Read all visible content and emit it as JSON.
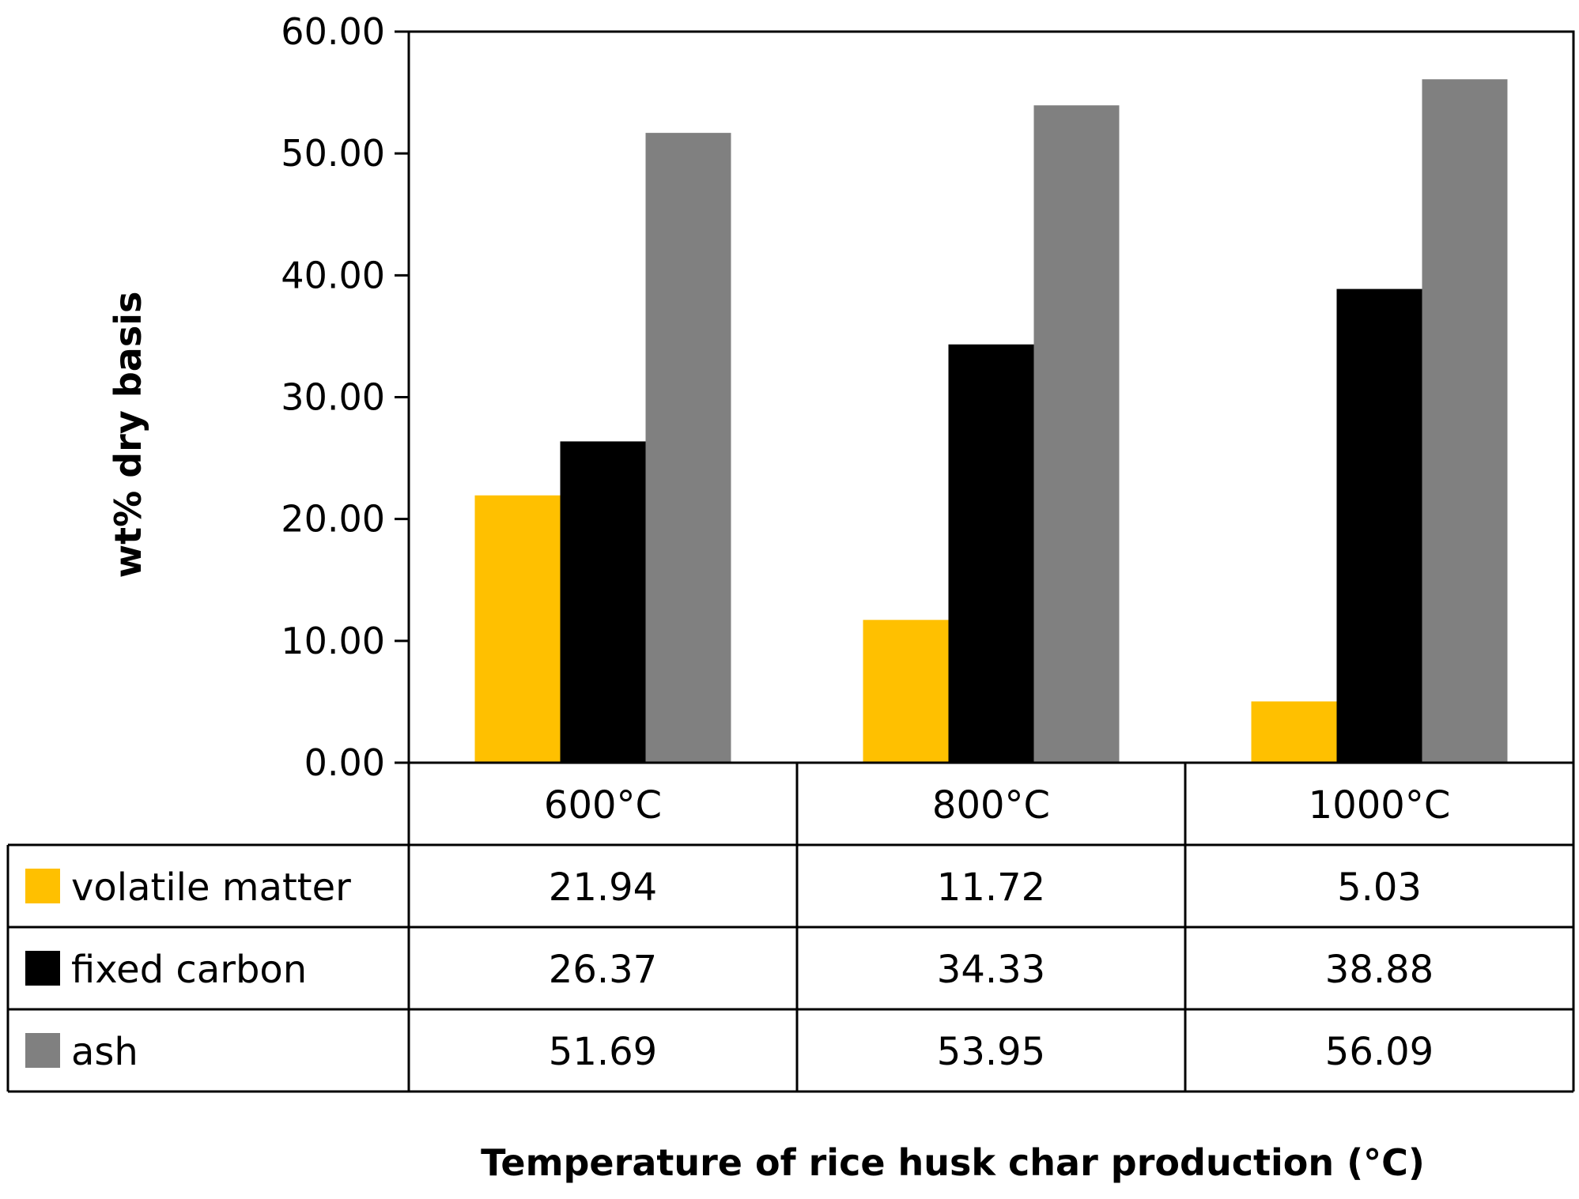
{
  "chart_data": {
    "type": "bar",
    "title": "",
    "xlabel": "Temperature of rice husk char production (°C)",
    "ylabel": "wt% dry basis",
    "ylim": [
      0,
      60
    ],
    "yticks": [
      "0.00",
      "10.00",
      "20.00",
      "30.00",
      "40.00",
      "50.00",
      "60.00"
    ],
    "categories": [
      "600°C",
      "800°C",
      "1000°C"
    ],
    "grid": false,
    "legend": "data table below plot",
    "series": [
      {
        "name": "volatile matter",
        "color": "#FFC000",
        "values": [
          21.94,
          11.72,
          5.03
        ],
        "labels": [
          "21.94",
          "11.72",
          "5.03"
        ]
      },
      {
        "name": "fixed carbon",
        "color": "#000000",
        "values": [
          26.37,
          34.33,
          38.88
        ],
        "labels": [
          "26.37",
          "34.33",
          "38.88"
        ]
      },
      {
        "name": "ash",
        "color": "#808080",
        "values": [
          51.69,
          53.95,
          56.09
        ],
        "labels": [
          "51.69",
          "53.95",
          "56.09"
        ]
      }
    ]
  }
}
